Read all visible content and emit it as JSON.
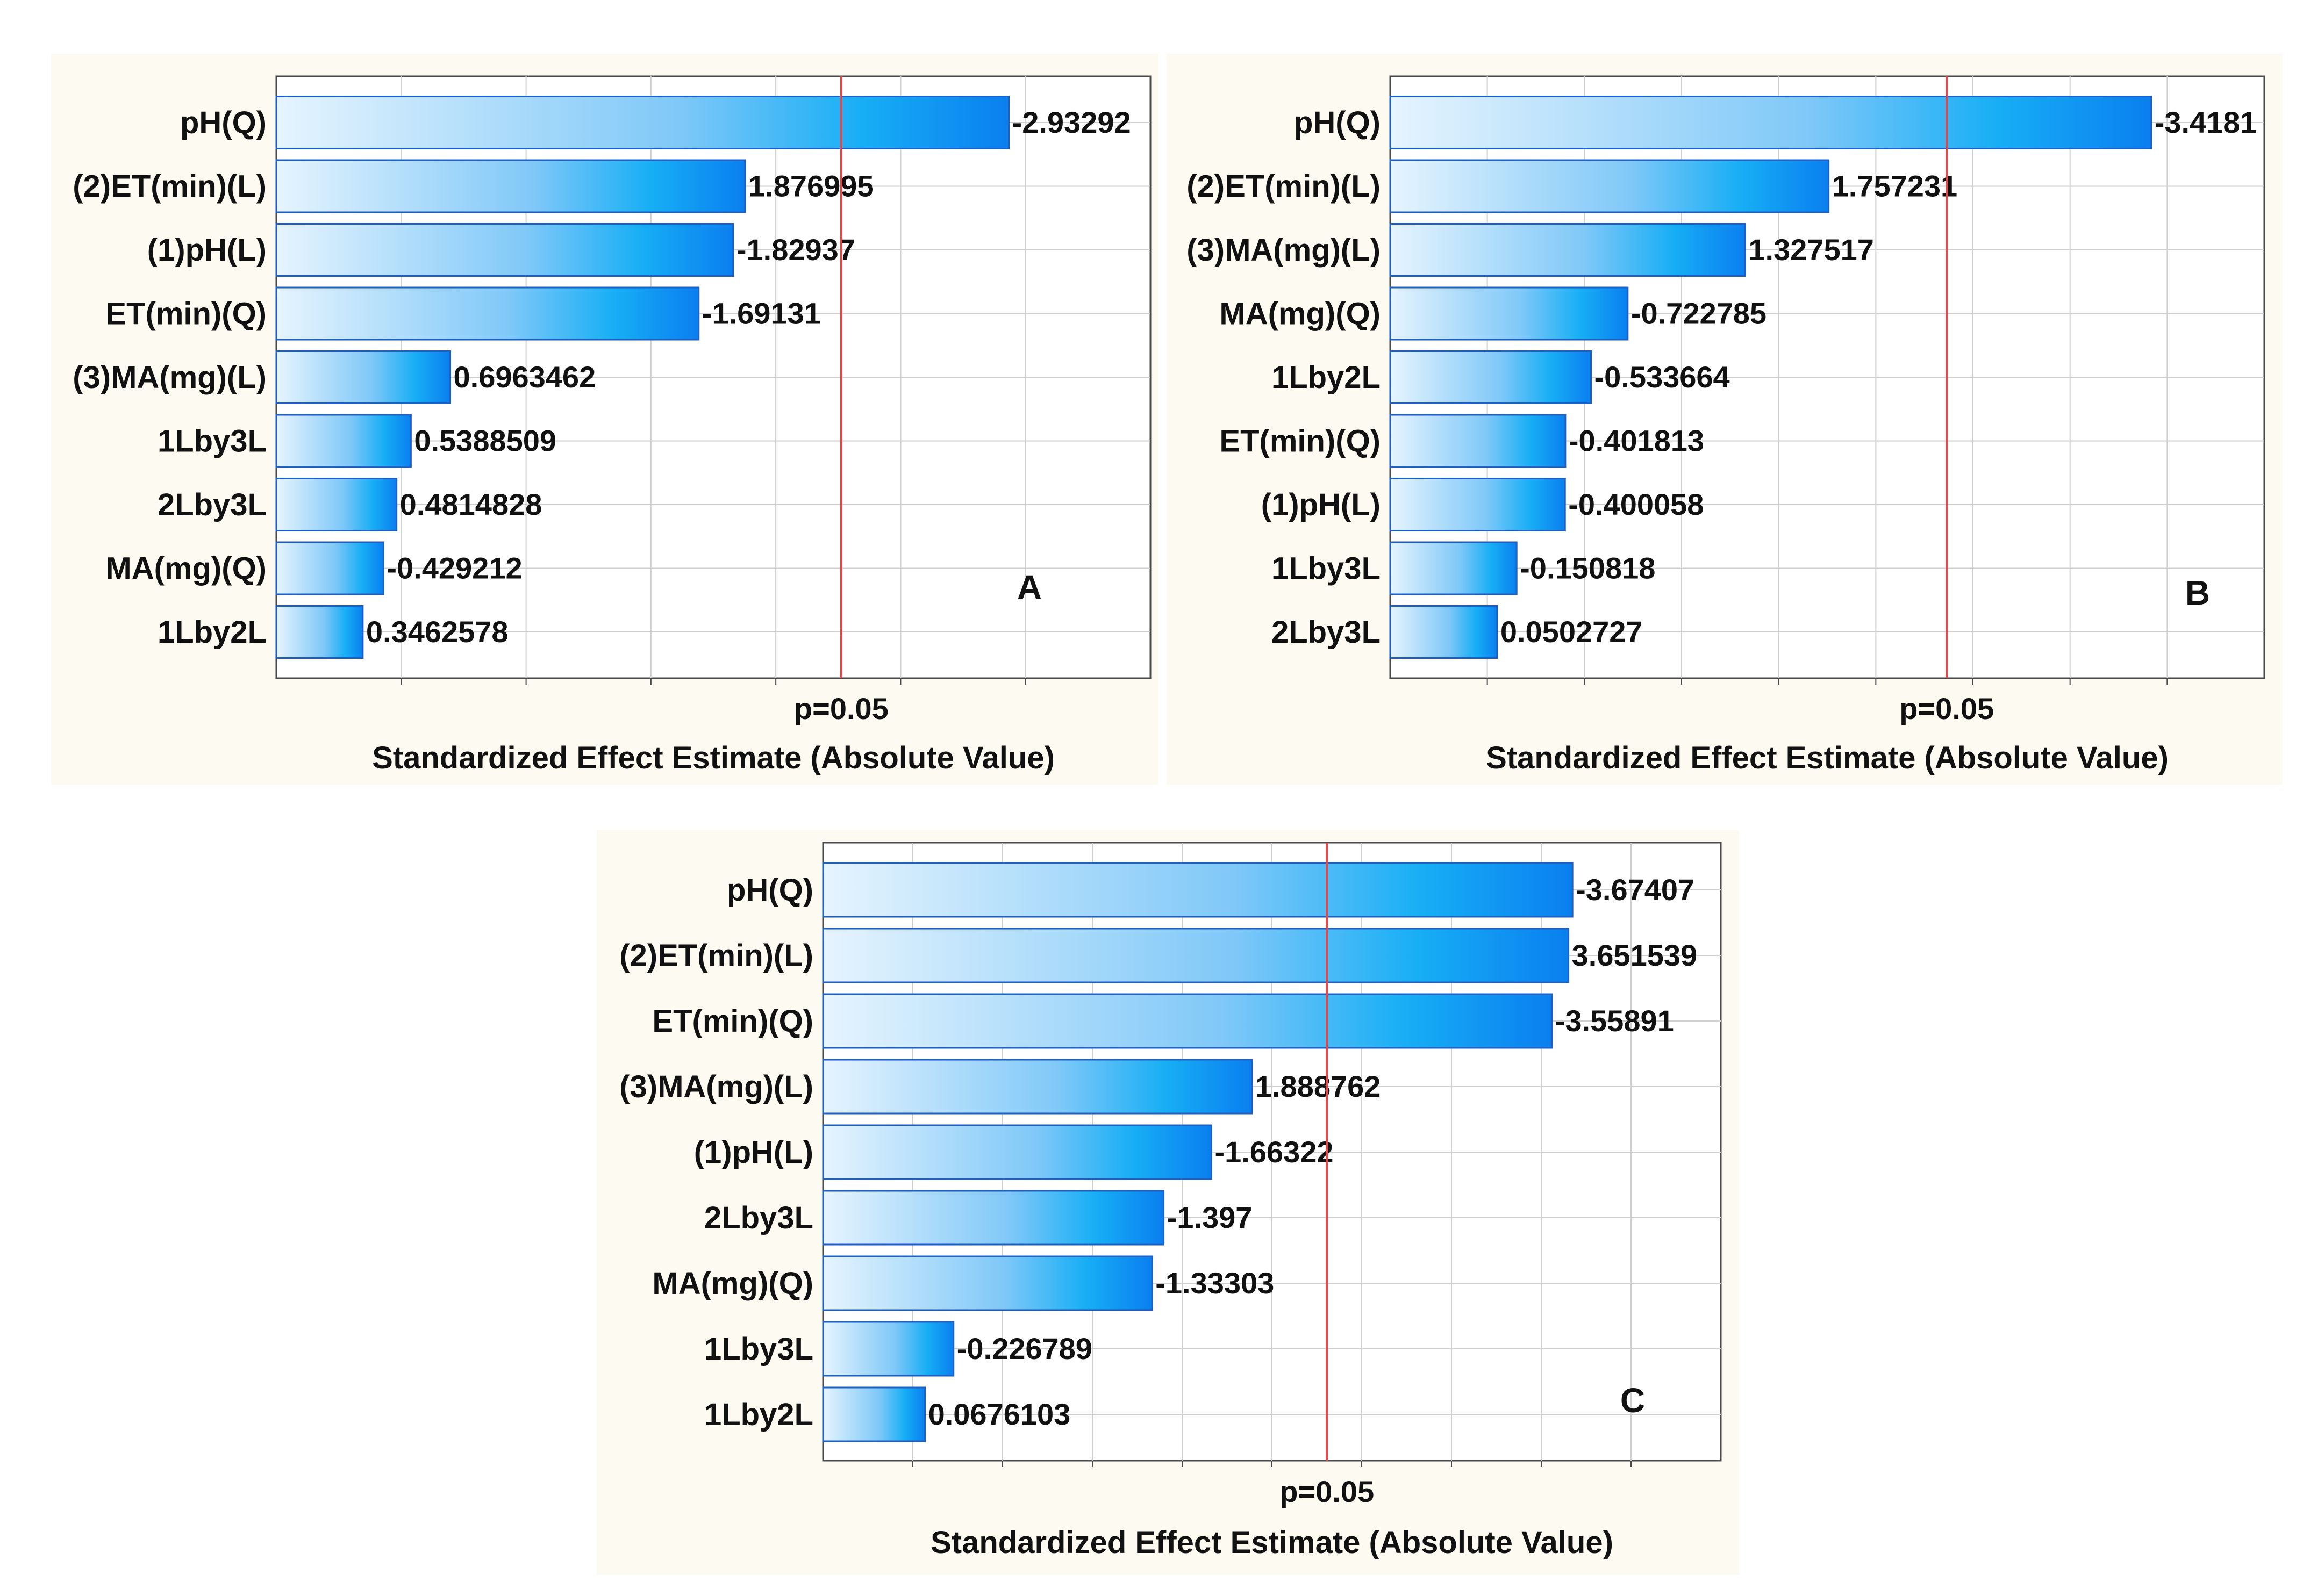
{
  "colors": {
    "panel_background": "#fdfaf2",
    "bar_light": "#e6f4fe",
    "bar_dark": "#0a7ff0",
    "bar_border": "#1f5fbf",
    "significance_line": "#e0484a"
  },
  "chart_data": [
    {
      "type": "bar",
      "orientation": "horizontal",
      "panel_label": "A",
      "categories": [
        "pH(Q)",
        "(2)ET(min)(L)",
        "(1)pH(L)",
        "ET(min)(Q)",
        "(3)MA(mg)(L)",
        "1Lby3L",
        "2Lby3L",
        "MA(mg)(Q)",
        "1Lby2L"
      ],
      "values": [
        -2.93292,
        1.876995,
        -1.82937,
        -1.69131,
        0.6963462,
        0.5388509,
        0.4814828,
        -0.429212,
        0.3462578
      ],
      "value_labels": [
        "-2.93292",
        "1.876995",
        "-1.82937",
        "-1.69131",
        "0.6963462",
        "0.5388509",
        "0.4814828",
        "-0.429212",
        "0.3462578"
      ],
      "significance_value": 2.262,
      "significance_label": "p=0.05",
      "xlabel": "Standardized Effect Estimate (Absolute Value)",
      "xlim": [
        0,
        3.5
      ],
      "grid": true
    },
    {
      "type": "bar",
      "orientation": "horizontal",
      "panel_label": "B",
      "categories": [
        "pH(Q)",
        "(2)ET(min)(L)",
        "(3)MA(mg)(L)",
        "MA(mg)(Q)",
        "1Lby2L",
        "ET(min)(Q)",
        "(1)pH(L)",
        "1Lby3L",
        "2Lby3L"
      ],
      "values": [
        -3.4181,
        1.757231,
        1.327517,
        -0.722785,
        -0.533664,
        -0.401813,
        -0.400058,
        -0.150818,
        0.0502727
      ],
      "value_labels": [
        "-3.4181",
        "1.757231",
        "1.327517",
        "-0.722785",
        "-0.533664",
        "-0.401813",
        "-0.400058",
        "-0.150818",
        "0.0502727"
      ],
      "significance_value": 2.365,
      "significance_label": "p=0.05",
      "xlabel": "Standardized Effect Estimate (Absolute Value)",
      "xlim": [
        -0.5,
        4.0
      ],
      "grid": true
    },
    {
      "type": "bar",
      "orientation": "horizontal",
      "panel_label": "C",
      "categories": [
        "pH(Q)",
        "(2)ET(min)(L)",
        "ET(min)(Q)",
        "(3)MA(mg)(L)",
        "(1)pH(L)",
        "2Lby3L",
        "MA(mg)(Q)",
        "1Lby3L",
        "1Lby2L"
      ],
      "values": [
        -3.67407,
        3.651539,
        -3.55891,
        1.888762,
        -1.66322,
        -1.397,
        -1.33303,
        -0.226789,
        0.0676103
      ],
      "value_labels": [
        "-3.67407",
        "3.651539",
        "-3.55891",
        "1.888762",
        "-1.66322",
        "-1.397",
        "-1.33303",
        "-0.226789",
        "0.0676103"
      ],
      "significance_value": 2.306,
      "significance_label": "p=0.05",
      "xlabel": "Standardized Effect Estimate (Absolute Value)",
      "xlim": [
        -0.5,
        4.5
      ],
      "grid": true
    }
  ]
}
